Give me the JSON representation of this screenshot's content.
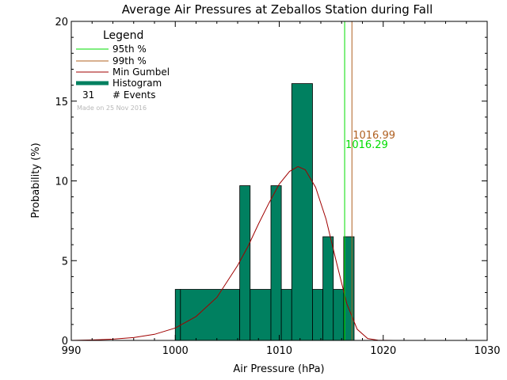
{
  "chart_data": {
    "type": "bar",
    "title": "Average Air Pressures at Zeballos Station during Fall",
    "xlabel": "Air Pressure (hPa)",
    "ylabel": "Probability (%)",
    "xlim": [
      990,
      1030
    ],
    "ylim": [
      0,
      20
    ],
    "xticks": [
      "990",
      "1000",
      "1010",
      "1020",
      "1030"
    ],
    "yticks": [
      "0",
      "5",
      "10",
      "15",
      "20"
    ],
    "grid": false,
    "legend_position": "top-left",
    "legend": {
      "title": "Legend",
      "entries": [
        "95th %",
        "99th %",
        "Min Gumbel",
        "Histogram"
      ],
      "events_count": "31",
      "events_label": "# Events",
      "made_on": "Made on 25 Nov 2016"
    },
    "histogram": {
      "name": "Histogram",
      "color": "#008060",
      "bins": [
        {
          "x0": 1000.0,
          "x1": 1000.5,
          "value": 3.2
        },
        {
          "x0": 1000.5,
          "x1": 1006.2,
          "value": 3.2
        },
        {
          "x0": 1006.2,
          "x1": 1007.2,
          "value": 9.7
        },
        {
          "x0": 1007.2,
          "x1": 1009.2,
          "value": 3.2
        },
        {
          "x0": 1009.2,
          "x1": 1010.2,
          "value": 9.7
        },
        {
          "x0": 1010.2,
          "x1": 1011.2,
          "value": 3.2
        },
        {
          "x0": 1011.2,
          "x1": 1013.2,
          "value": 16.1
        },
        {
          "x0": 1013.2,
          "x1": 1014.2,
          "value": 3.2
        },
        {
          "x0": 1014.2,
          "x1": 1015.2,
          "value": 6.5
        },
        {
          "x0": 1015.2,
          "x1": 1016.2,
          "value": 3.2
        },
        {
          "x0": 1016.2,
          "x1": 1017.2,
          "value": 6.5
        }
      ]
    },
    "gumbel": {
      "name": "Min Gumbel",
      "color": "#a00000",
      "points": [
        [
          990,
          0.0
        ],
        [
          992,
          0.03
        ],
        [
          994,
          0.08
        ],
        [
          996,
          0.18
        ],
        [
          998,
          0.38
        ],
        [
          1000,
          0.78
        ],
        [
          1002,
          1.5
        ],
        [
          1004,
          2.7
        ],
        [
          1006,
          4.7
        ],
        [
          1007,
          5.9
        ],
        [
          1008,
          7.3
        ],
        [
          1009,
          8.6
        ],
        [
          1010,
          9.8
        ],
        [
          1011,
          10.6
        ],
        [
          1011.8,
          10.9
        ],
        [
          1012.5,
          10.7
        ],
        [
          1013.5,
          9.6
        ],
        [
          1014.5,
          7.6
        ],
        [
          1015.5,
          4.9
        ],
        [
          1016.5,
          2.3
        ],
        [
          1017.5,
          0.7
        ],
        [
          1018.5,
          0.12
        ],
        [
          1019.5,
          0.01
        ],
        [
          1021,
          0.0
        ]
      ]
    },
    "percentiles": [
      {
        "name": "95th %",
        "value": 1016.29,
        "label": "1016.29",
        "color": "#00dd00"
      },
      {
        "name": "99th %",
        "value": 1016.99,
        "label": "1016.99",
        "color": "#b06020"
      }
    ]
  }
}
